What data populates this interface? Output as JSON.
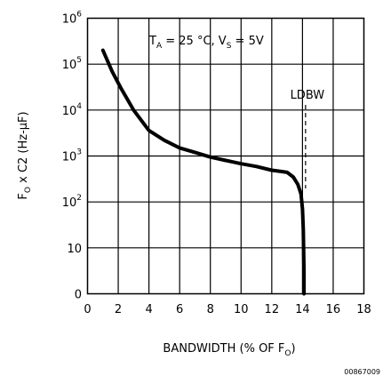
{
  "chart_data": {
    "type": "line",
    "xlabel": {
      "main": "BANDWIDTH (% OF F",
      "sub": "O",
      "tail": ")"
    },
    "ylabel": {
      "main": "F",
      "sub": "O",
      "tail": " x C2 (Hz-μF)"
    },
    "condition": {
      "t": "T",
      "t_sub": "A",
      "t_val": " = 25 °C, V",
      "v_sub": "S",
      "v_val": " = 5V"
    },
    "x_ticks": [
      "0",
      "2",
      "4",
      "6",
      "8",
      "10",
      "12",
      "14",
      "16",
      "18"
    ],
    "y_ticks": [
      {
        "base": "0",
        "exp": ""
      },
      {
        "base": "10",
        "exp": ""
      },
      {
        "base": "10",
        "exp": "2"
      },
      {
        "base": "10",
        "exp": "3"
      },
      {
        "base": "10",
        "exp": "4"
      },
      {
        "base": "10",
        "exp": "5"
      },
      {
        "base": "10",
        "exp": "6"
      }
    ],
    "xlim": [
      0,
      18
    ],
    "ylim_decades": [
      0,
      6
    ],
    "y_scale": "log",
    "grid": true,
    "series": [
      {
        "x": [
          1.0,
          1.6,
          2.2,
          3.0,
          4.0,
          5.0,
          6.0,
          7.0,
          8.0,
          9.0,
          10.0,
          11.0,
          12.0,
          12.6,
          13.0,
          13.4,
          13.7,
          13.9,
          14.0,
          14.05,
          14.1,
          14.1
        ],
        "y": [
          200000,
          70000,
          29000,
          10000,
          3600,
          2200,
          1500,
          1200,
          950,
          800,
          680,
          590,
          490,
          460,
          440,
          350,
          240,
          150,
          70,
          25,
          3,
          1
        ]
      }
    ],
    "annotation": {
      "label": "LDBW",
      "x": 14.2
    },
    "figure_id": "00867009"
  }
}
